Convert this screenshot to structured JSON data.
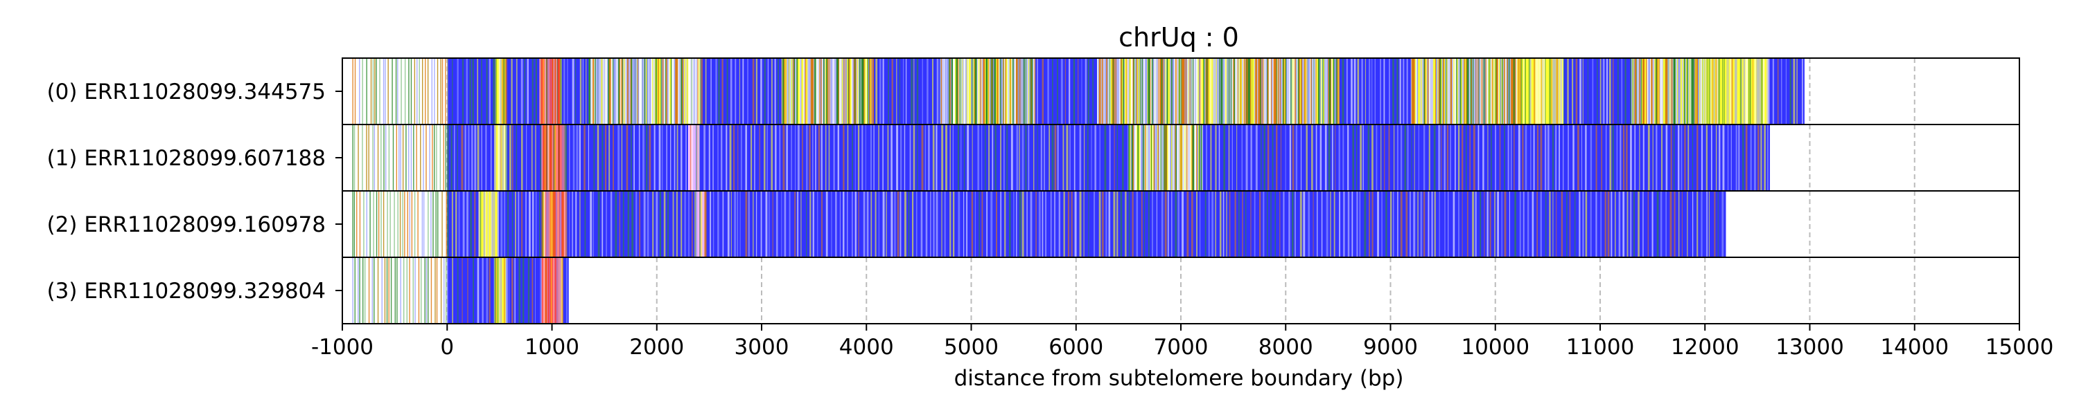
{
  "chart_data": {
    "type": "bar",
    "orientation": "horizontal",
    "title": "chrUq : 0",
    "xlabel": "distance from subtelomere boundary (bp)",
    "ylabel": "",
    "xlim": [
      -1000,
      15000
    ],
    "xticks": [
      -1000,
      0,
      1000,
      2000,
      3000,
      4000,
      5000,
      6000,
      7000,
      8000,
      9000,
      10000,
      11000,
      12000,
      13000,
      14000,
      15000
    ],
    "grid": "x-dashed",
    "reads": [
      {
        "label": "(0) ERR11028099.344575",
        "start": -1000,
        "end": 12950
      },
      {
        "label": "(1) ERR11028099.607188",
        "start": -1000,
        "end": 12620
      },
      {
        "label": "(2) ERR11028099.160978",
        "start": -1000,
        "end": 12200
      },
      {
        "label": "(3) ERR11028099.329804",
        "start": -1000,
        "end": 1160
      }
    ],
    "segments": [
      {
        "read": 0,
        "items": [
          {
            "start": 0,
            "end": 460,
            "color": "#3333ff"
          },
          {
            "start": 460,
            "end": 560,
            "color": "#ffff33"
          },
          {
            "start": 560,
            "end": 880,
            "color": "#3333ff"
          },
          {
            "start": 880,
            "end": 1080,
            "color": "#ff3333"
          },
          {
            "start": 1080,
            "end": 1350,
            "color": "#3333ff"
          },
          {
            "start": 1350,
            "end": 2300,
            "color": "#2e8b2e"
          },
          {
            "start": 2300,
            "end": 2420,
            "color": "#ffffff"
          },
          {
            "start": 2420,
            "end": 3200,
            "color": "#3333ff"
          },
          {
            "start": 3200,
            "end": 4050,
            "color": "#2e8b2e"
          },
          {
            "start": 4050,
            "end": 4700,
            "color": "#3333ff"
          },
          {
            "start": 4700,
            "end": 5600,
            "color": "#2e8b2e"
          },
          {
            "start": 5600,
            "end": 6200,
            "color": "#3333ff"
          },
          {
            "start": 6200,
            "end": 7600,
            "color": "#2e8b2e"
          },
          {
            "start": 7600,
            "end": 8500,
            "color": "#2e8b2e"
          },
          {
            "start": 8500,
            "end": 9200,
            "color": "#3333ff"
          },
          {
            "start": 9200,
            "end": 10200,
            "color": "#2e8b2e"
          },
          {
            "start": 10200,
            "end": 10650,
            "color": "#ffff33"
          },
          {
            "start": 10650,
            "end": 11300,
            "color": "#3333ff"
          },
          {
            "start": 11300,
            "end": 12000,
            "color": "#2e8b2e"
          },
          {
            "start": 12000,
            "end": 12600,
            "color": "#ffff33"
          },
          {
            "start": 12600,
            "end": 12950,
            "color": "#3333ff"
          }
        ]
      },
      {
        "read": 1,
        "items": [
          {
            "start": 0,
            "end": 450,
            "color": "#3333ff"
          },
          {
            "start": 450,
            "end": 560,
            "color": "#ffff33"
          },
          {
            "start": 560,
            "end": 900,
            "color": "#3333ff"
          },
          {
            "start": 900,
            "end": 1130,
            "color": "#ff3333"
          },
          {
            "start": 1130,
            "end": 2300,
            "color": "#3333ff"
          },
          {
            "start": 2300,
            "end": 2400,
            "color": "#ffaaff"
          },
          {
            "start": 2400,
            "end": 6500,
            "color": "#3333ff"
          },
          {
            "start": 6500,
            "end": 7200,
            "color": "#2e8b2e"
          },
          {
            "start": 7200,
            "end": 12620,
            "color": "#3333ff"
          }
        ]
      },
      {
        "read": 2,
        "items": [
          {
            "start": 0,
            "end": 300,
            "color": "#3333ff"
          },
          {
            "start": 300,
            "end": 480,
            "color": "#ffff33"
          },
          {
            "start": 480,
            "end": 900,
            "color": "#3333ff"
          },
          {
            "start": 900,
            "end": 1130,
            "color": "#ff3333"
          },
          {
            "start": 1130,
            "end": 2360,
            "color": "#3333ff"
          },
          {
            "start": 2360,
            "end": 2460,
            "color": "#ffaaff"
          },
          {
            "start": 2460,
            "end": 12200,
            "color": "#3333ff"
          }
        ]
      },
      {
        "read": 3,
        "items": [
          {
            "start": 0,
            "end": 450,
            "color": "#3333ff"
          },
          {
            "start": 450,
            "end": 560,
            "color": "#ffff33"
          },
          {
            "start": 560,
            "end": 900,
            "color": "#3333ff"
          },
          {
            "start": 900,
            "end": 1100,
            "color": "#ff3333"
          },
          {
            "start": 1100,
            "end": 1160,
            "color": "#3333ff"
          }
        ]
      }
    ]
  }
}
